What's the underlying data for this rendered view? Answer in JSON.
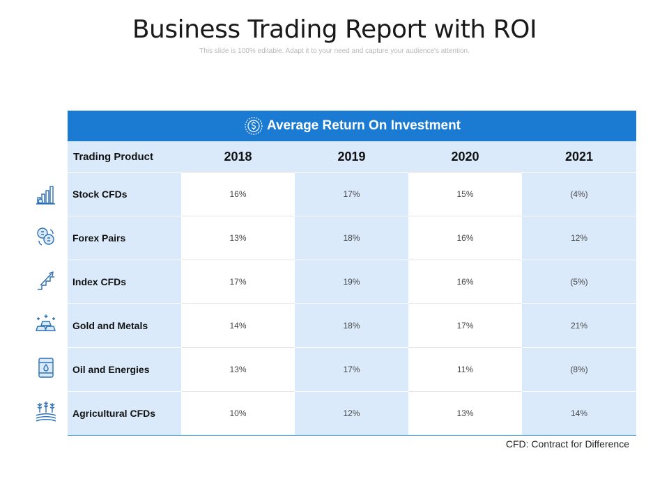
{
  "title": "Business Trading Report with ROI",
  "subtitle": "This slide is 100% editable. Adapt it to your need and capture your audience's attention.",
  "table": {
    "banner": "Average Return On Investment",
    "columns": [
      "Trading Product",
      "2018",
      "2019",
      "2020",
      "2021"
    ],
    "rows": [
      {
        "product": "Stock CFDs",
        "icon": "bar-chart-growth-icon",
        "values": [
          "16%",
          "17%",
          "15%",
          "(4%)"
        ]
      },
      {
        "product": "Forex Pairs",
        "icon": "currency-exchange-icon",
        "values": [
          "13%",
          "18%",
          "16%",
          "12%"
        ]
      },
      {
        "product": "Index CFDs",
        "icon": "stairs-growth-icon",
        "values": [
          "17%",
          "19%",
          "16%",
          "(5%)"
        ]
      },
      {
        "product": "Gold and Metals",
        "icon": "gold-bars-icon",
        "values": [
          "14%",
          "18%",
          "17%",
          "21%"
        ]
      },
      {
        "product": "Oil and Energies",
        "icon": "oil-barrel-icon",
        "values": [
          "13%",
          "17%",
          "11%",
          "(8%)"
        ]
      },
      {
        "product": "Agricultural CFDs",
        "icon": "wheat-field-icon",
        "values": [
          "10%",
          "12%",
          "13%",
          "14%"
        ]
      }
    ]
  },
  "footnote": "CFD: Contract for Difference",
  "colors": {
    "accent": "#1b7bd3",
    "cell_tint": "#dbeafb",
    "icon": "#2a6fb5"
  }
}
